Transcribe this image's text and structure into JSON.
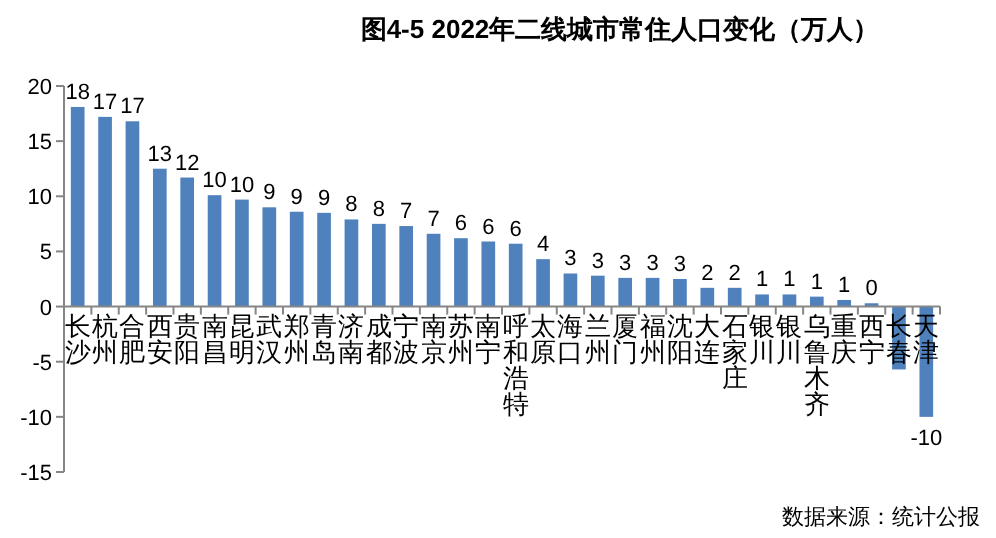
{
  "chart_data": {
    "type": "bar",
    "title": "图4-5 2022年二线城市常住人口变化（万人）",
    "categories": [
      "长沙",
      "杭州",
      "合肥",
      "西安",
      "贵阳",
      "南昌",
      "昆明",
      "武汉",
      "郑州",
      "青岛",
      "济南",
      "成都",
      "宁波",
      "南京",
      "苏州",
      "南宁",
      "呼和浩特",
      "太原",
      "海口",
      "兰州",
      "厦门",
      "福州",
      "沈阳",
      "大连",
      "石家庄",
      "银川",
      "银川",
      "乌鲁木齐",
      "重庆",
      "西宁",
      "长春",
      "天津"
    ],
    "values": [
      18.1,
      17.2,
      16.8,
      12.5,
      11.7,
      10.1,
      9.7,
      9.0,
      8.6,
      8.5,
      7.9,
      7.5,
      7.3,
      6.6,
      6.2,
      5.9,
      5.7,
      4.3,
      3.0,
      2.8,
      2.6,
      2.6,
      2.5,
      1.7,
      1.7,
      1.1,
      1.1,
      0.9,
      0.6,
      0.3,
      -5.7,
      -10.0
    ],
    "value_labels": [
      "18",
      "17",
      "17",
      "13",
      "12",
      "10",
      "10",
      "9",
      "9",
      "9",
      "8",
      "8",
      "7",
      "7",
      "6",
      "6",
      "6",
      "4",
      "3",
      "3",
      "3",
      "3",
      "3",
      "2",
      "2",
      "1",
      "1",
      "1",
      "1",
      "0",
      null,
      "-10"
    ],
    "color": "#4f81bd",
    "ylim": [
      -15,
      20
    ],
    "yticks": [
      -15,
      -10,
      -5,
      0,
      5,
      10,
      15,
      20
    ],
    "grid": false,
    "annotations": [
      "数据来源：统计公报"
    ]
  }
}
